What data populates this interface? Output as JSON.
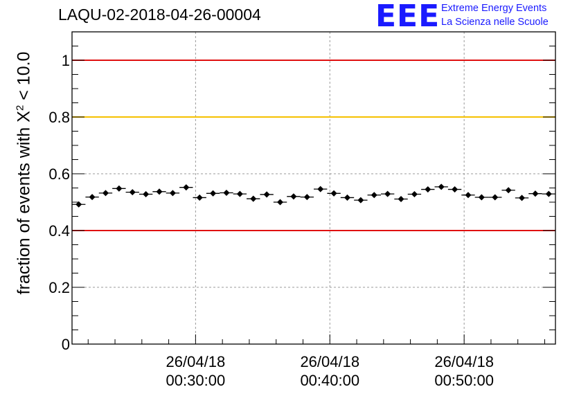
{
  "header": {
    "title": "LAQU-02-2018-04-26-00004",
    "logo_text": "EEE",
    "brand_line1": "Extreme Energy Events",
    "brand_line2": "La Scienza nelle Scuole"
  },
  "colors": {
    "red_line": "#e01010",
    "yellow_line": "#f5c000",
    "logo": "#1a1aff",
    "marker": "#000000"
  },
  "chart_data": {
    "type": "scatter",
    "title": "LAQU-02-2018-04-26-00004",
    "xlabel": "",
    "ylabel": "fraction of events with X² < 10.0",
    "ylabel_main": "fraction of events with X",
    "ylabel_exp": "2",
    "ylabel_tail": " < 10.0",
    "xlim_minutes": [
      20.8,
      56.8
    ],
    "ylim": [
      0,
      1.1
    ],
    "y_ticks": [
      {
        "value": 0,
        "label": "0"
      },
      {
        "value": 0.2,
        "label": "0.2"
      },
      {
        "value": 0.4,
        "label": "0.4"
      },
      {
        "value": 0.6,
        "label": "0.6"
      },
      {
        "value": 0.8,
        "label": "0.8"
      },
      {
        "value": 1.0,
        "label": "1"
      }
    ],
    "x_ticks": [
      {
        "minutes": 30,
        "date": "26/04/18",
        "time": "00:30:00"
      },
      {
        "minutes": 40,
        "date": "26/04/18",
        "time": "00:40:00"
      },
      {
        "minutes": 50,
        "date": "26/04/18",
        "time": "00:50:00"
      }
    ],
    "reference_lines": [
      {
        "value": 1.0,
        "color": "red"
      },
      {
        "value": 0.8,
        "color": "yellow"
      },
      {
        "value": 0.4,
        "color": "red"
      }
    ],
    "grid": true,
    "bin_width_minutes": 1,
    "x_start_minutes": 21.3,
    "y_error": 0.008,
    "values": [
      0.492,
      0.518,
      0.532,
      0.548,
      0.535,
      0.528,
      0.537,
      0.532,
      0.552,
      0.516,
      0.531,
      0.533,
      0.529,
      0.512,
      0.527,
      0.5,
      0.52,
      0.518,
      0.546,
      0.531,
      0.516,
      0.507,
      0.525,
      0.529,
      0.511,
      0.528,
      0.545,
      0.554,
      0.545,
      0.525,
      0.517,
      0.517,
      0.542,
      0.515,
      0.53,
      0.529
    ]
  }
}
